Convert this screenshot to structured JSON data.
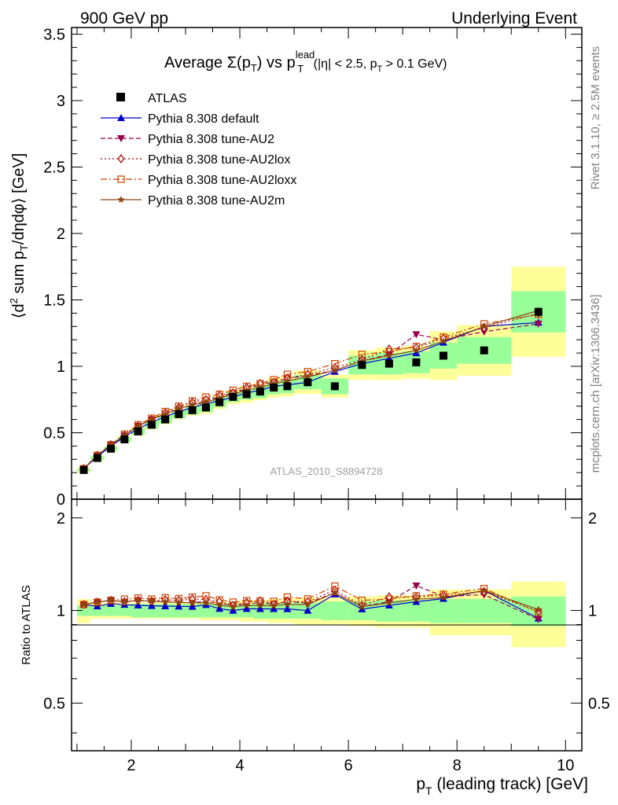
{
  "header": {
    "left": "900 GeV pp",
    "right": "Underlying Event"
  },
  "side_labels": {
    "rivet": "Rivet 3.1.10, ≥ 2.5M events",
    "mcplots": "mcplots.cern.ch [arXiv:1306.3436]"
  },
  "chart_data": {
    "type": "line",
    "title": "Average Σ(pT) vs pT^lead (|η| < 2.5, pT > 0.1 GeV)",
    "title_parts": {
      "a": "Average ",
      "b": "Σ(p",
      "c": "T",
      "d": ") vs p",
      "e": "lead",
      "f": "T",
      "g": " (|η| < 2.5, p",
      "h": "T",
      "i": " > 0.1 GeV)"
    },
    "analysis_label": "ATLAS_2010_S8894728",
    "xlabel": "pT (leading track) [GeV]",
    "xlabel_parts": {
      "a": "p",
      "b": "T",
      "c": " (leading track) [GeV]"
    },
    "ylabel": "⟨d² sum pT/dηdφ⟩ [GeV]",
    "ylabel_parts": {
      "a": "⟨d",
      "b": "2",
      "c": " sum p",
      "d": "T",
      "e": "/dηdφ⟩ [GeV]"
    },
    "ratio_ylabel": "Ratio to ATLAS",
    "xlim": [
      0.9,
      10.3
    ],
    "ylim": [
      0,
      3.55
    ],
    "ratio_ylim": [
      0.35,
      2.3
    ],
    "x_ticks": [
      2,
      4,
      6,
      8,
      10
    ],
    "x_tick_labels": [
      "2",
      "4",
      "6",
      "8",
      "10"
    ],
    "y_ticks": [
      0,
      0.5,
      1,
      1.5,
      2,
      2.5,
      3,
      3.5
    ],
    "y_tick_labels": [
      "0",
      "0.5",
      "1",
      "1.5",
      "2",
      "2.5",
      "3",
      "3.5"
    ],
    "ratio_ticks": [
      0.5,
      1,
      2
    ],
    "ratio_tick_labels": [
      "0.5",
      "1",
      "2"
    ],
    "legend_position": "top-left",
    "x": [
      1.125,
      1.375,
      1.625,
      1.875,
      2.125,
      2.375,
      2.625,
      2.875,
      3.125,
      3.375,
      3.625,
      3.875,
      4.125,
      4.375,
      4.625,
      4.875,
      5.25,
      5.75,
      6.25,
      6.75,
      7.25,
      7.75,
      8.5,
      9.5
    ],
    "x_edges": [
      1.0,
      1.25,
      1.5,
      1.75,
      2.0,
      2.25,
      2.5,
      2.75,
      3.0,
      3.25,
      3.5,
      3.75,
      4.0,
      4.25,
      4.5,
      4.75,
      5.0,
      5.5,
      6.0,
      6.5,
      7.0,
      7.5,
      8.0,
      9.0,
      10.0
    ],
    "data": {
      "name": "ATLAS",
      "values": [
        0.22,
        0.31,
        0.38,
        0.45,
        0.51,
        0.56,
        0.6,
        0.64,
        0.67,
        0.69,
        0.73,
        0.77,
        0.79,
        0.81,
        0.84,
        0.85,
        0.88,
        0.85,
        1.01,
        1.02,
        1.03,
        1.08,
        1.12,
        1.41
      ],
      "band_green": [
        0.04,
        0.04,
        0.04,
        0.04,
        0.05,
        0.05,
        0.05,
        0.05,
        0.05,
        0.05,
        0.05,
        0.05,
        0.05,
        0.06,
        0.06,
        0.06,
        0.06,
        0.07,
        0.07,
        0.08,
        0.08,
        0.09,
        0.09,
        0.11
      ],
      "band_yellow": [
        0.09,
        0.06,
        0.06,
        0.06,
        0.06,
        0.06,
        0.06,
        0.06,
        0.06,
        0.07,
        0.07,
        0.07,
        0.08,
        0.08,
        0.09,
        0.09,
        0.1,
        0.1,
        0.11,
        0.12,
        0.12,
        0.17,
        0.17,
        0.24
      ],
      "color": "#000000"
    },
    "series": [
      {
        "name": "Pythia 8.308 default",
        "color": "#0000cc",
        "dash": "",
        "marker": "triangle-up",
        "values": [
          0.23,
          0.32,
          0.4,
          0.47,
          0.53,
          0.58,
          0.62,
          0.66,
          0.69,
          0.72,
          0.74,
          0.77,
          0.8,
          0.82,
          0.85,
          0.86,
          0.88,
          0.96,
          1.02,
          1.06,
          1.1,
          1.18,
          1.3,
          1.33
        ]
      },
      {
        "name": "Pythia 8.308 tune-AU2",
        "color": "#99004d",
        "dash": "6,3",
        "marker": "triangle-down",
        "values": [
          0.23,
          0.33,
          0.41,
          0.48,
          0.55,
          0.6,
          0.64,
          0.68,
          0.71,
          0.74,
          0.77,
          0.8,
          0.83,
          0.86,
          0.88,
          0.91,
          0.93,
          0.97,
          1.04,
          1.09,
          1.24,
          1.2,
          1.26,
          1.32
        ]
      },
      {
        "name": "Pythia 8.308 tune-AU2lox",
        "color": "#aa0000",
        "dash": "2,3",
        "marker": "diamond-open",
        "values": [
          0.23,
          0.33,
          0.41,
          0.48,
          0.55,
          0.6,
          0.65,
          0.69,
          0.73,
          0.75,
          0.78,
          0.8,
          0.84,
          0.87,
          0.88,
          0.91,
          0.94,
          0.99,
          1.05,
          1.13,
          1.14,
          1.21,
          1.29,
          1.4
        ]
      },
      {
        "name": "Pythia 8.308 tune-AU2loxx",
        "color": "#cc4400",
        "dash": "8,3,2,3",
        "marker": "square-open",
        "values": [
          0.23,
          0.33,
          0.41,
          0.49,
          0.56,
          0.61,
          0.66,
          0.7,
          0.74,
          0.77,
          0.79,
          0.82,
          0.85,
          0.87,
          0.9,
          0.94,
          0.96,
          1.02,
          1.09,
          1.11,
          1.15,
          1.22,
          1.32,
          1.39
        ]
      },
      {
        "name": "Pythia 8.308 tune-AU2m",
        "color": "#8b4513",
        "dash": "",
        "marker": "star",
        "values": [
          0.23,
          0.33,
          0.41,
          0.48,
          0.55,
          0.6,
          0.64,
          0.68,
          0.71,
          0.73,
          0.76,
          0.79,
          0.82,
          0.84,
          0.87,
          0.89,
          0.92,
          0.97,
          1.04,
          1.08,
          1.12,
          1.19,
          1.3,
          1.42
        ]
      }
    ]
  }
}
